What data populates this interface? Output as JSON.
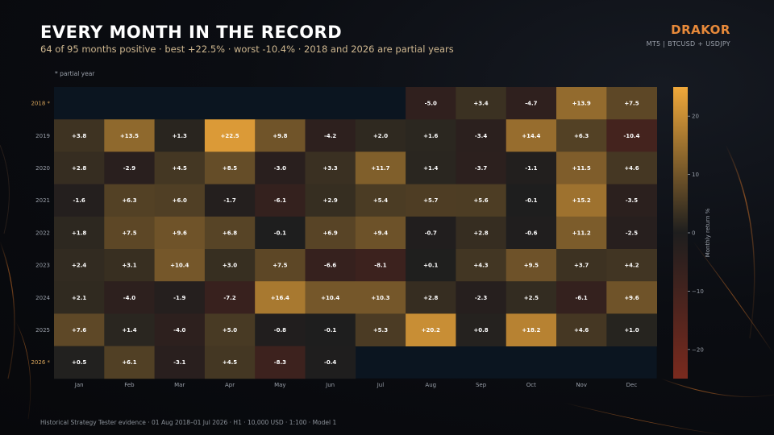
{
  "header": {
    "title": "EVERY MONTH IN THE RECORD",
    "subtitle": "64 of 95 months positive · best +22.5% · worst -10.4% · 2018 and 2026 are partial years",
    "brand": "DRAKOR",
    "brand_sub": "MT5  |  BTCUSD + USDJPY",
    "note": "* partial year",
    "footer": "Historical Strategy Tester evidence · 01 Aug 2018–01 Jul 2026 · H1 · 10,000 USD · 1:100 · Model 1"
  },
  "colors": {
    "positive_max": "#f0a83a",
    "neutral": "#1e1e1e",
    "negative_max": "#7a2a1e",
    "empty": "#0b1520",
    "partial_label": "#d6a35a",
    "label": "#9aa0aa"
  },
  "chart_data": {
    "type": "heatmap",
    "x": [
      "Jan",
      "Feb",
      "Mar",
      "Apr",
      "May",
      "Jun",
      "Jul",
      "Aug",
      "Sep",
      "Oct",
      "Nov",
      "Dec"
    ],
    "y": [
      "2018 *",
      "2019",
      "2020",
      "2021",
      "2022",
      "2023",
      "2024",
      "2025",
      "2026 *"
    ],
    "partial_rows": [
      0,
      8
    ],
    "values": [
      [
        null,
        null,
        null,
        null,
        null,
        null,
        null,
        -5.0,
        3.4,
        -4.7,
        13.9,
        7.5
      ],
      [
        3.8,
        13.5,
        1.3,
        22.5,
        9.8,
        -4.2,
        2.0,
        1.6,
        -3.4,
        14.4,
        6.3,
        -10.4
      ],
      [
        2.8,
        -2.9,
        4.5,
        8.5,
        -3.0,
        3.3,
        11.7,
        1.4,
        -3.7,
        -1.1,
        11.5,
        4.6
      ],
      [
        -1.6,
        6.3,
        6.0,
        -1.7,
        -6.1,
        2.9,
        5.4,
        5.7,
        5.6,
        -0.1,
        15.2,
        -3.5
      ],
      [
        1.8,
        7.5,
        9.6,
        6.8,
        -0.1,
        6.9,
        9.4,
        -0.7,
        2.8,
        -0.6,
        11.2,
        -2.5
      ],
      [
        2.4,
        3.1,
        10.4,
        3.0,
        7.5,
        -6.6,
        -8.1,
        0.1,
        4.3,
        9.5,
        3.7,
        4.2
      ],
      [
        2.1,
        -4.0,
        -1.9,
        -7.2,
        16.4,
        10.4,
        10.3,
        2.8,
        -2.3,
        2.5,
        -6.1,
        9.6
      ],
      [
        7.6,
        1.4,
        -4.0,
        5.0,
        -0.8,
        -0.1,
        5.3,
        20.2,
        0.8,
        18.2,
        4.6,
        1.0
      ],
      [
        0.5,
        6.1,
        -3.1,
        4.5,
        -8.3,
        -0.4,
        null,
        null,
        null,
        null,
        null,
        null
      ]
    ],
    "colorbar": {
      "label": "Monthly return %",
      "range": [
        -25,
        25
      ],
      "ticks": [
        20,
        10,
        0,
        -10,
        -20
      ],
      "tick_labels": [
        "20",
        "10",
        "0",
        "−10",
        "−20"
      ]
    }
  }
}
